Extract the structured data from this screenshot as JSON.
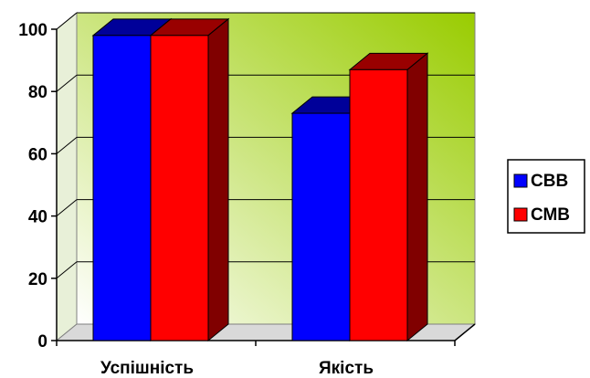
{
  "chart_data": {
    "type": "bar",
    "categories": [
      "Успішність",
      "Якість"
    ],
    "series": [
      {
        "name": "СВВ",
        "values": [
          98,
          73
        ],
        "color": "#0000ff"
      },
      {
        "name": "СМВ",
        "values": [
          98,
          87
        ],
        "color": "#ff0000"
      }
    ],
    "ylim": [
      0,
      100
    ],
    "yticks": [
      0,
      20,
      40,
      60,
      80,
      100
    ],
    "grid": true,
    "legend_position": "right",
    "wall_gradient": [
      "#ffffff",
      "#99cc00"
    ]
  }
}
